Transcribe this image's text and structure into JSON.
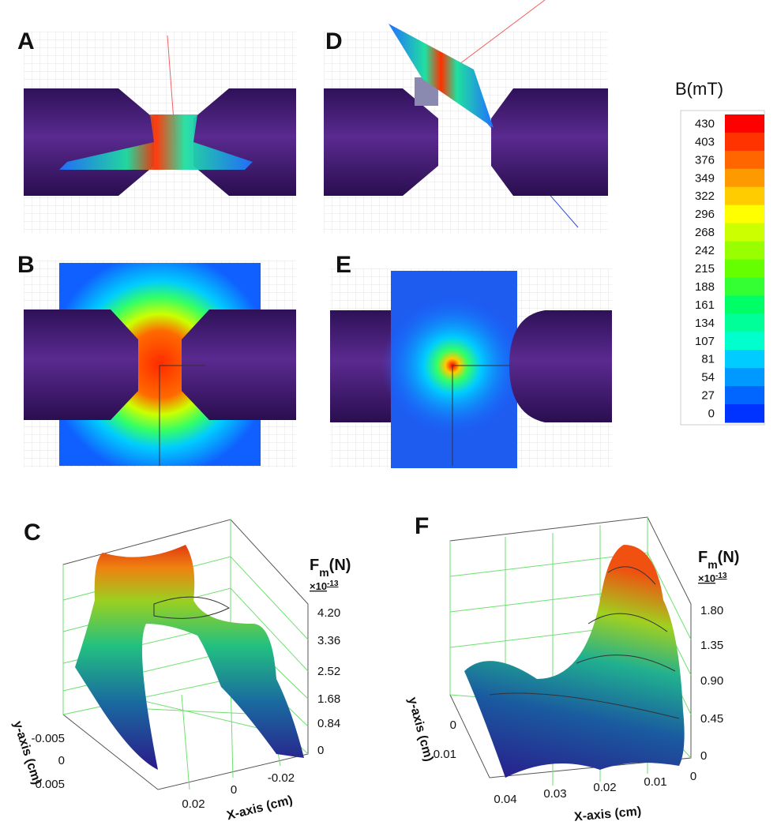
{
  "panels": {
    "A": {
      "label": "A"
    },
    "B": {
      "label": "B"
    },
    "C": {
      "label": "C",
      "force_label": {
        "symbol": "F",
        "subscript": "m",
        "unit": "(N)"
      },
      "multiplier": {
        "base": "×10",
        "exponent": "-13"
      },
      "z_ticks": [
        "4.20",
        "3.36",
        "2.52",
        "1.68",
        "0.84",
        "0"
      ],
      "y_axis_label": "y-axis (cm)",
      "y_ticks": [
        "-0.005",
        "0",
        "0.005"
      ],
      "x_axis_label": "X-axis (cm)",
      "x_ticks": [
        "0.02",
        "0",
        "-0.02"
      ]
    },
    "D": {
      "label": "D"
    },
    "E": {
      "label": "E"
    },
    "F": {
      "label": "F",
      "force_label": {
        "symbol": "F",
        "subscript": "m",
        "unit": "(N)"
      },
      "multiplier": {
        "base": "×10",
        "exponent": "-13"
      },
      "z_ticks": [
        "1.80",
        "1.35",
        "0.90",
        "0.45",
        "0"
      ],
      "y_axis_label": "y-axis (cm)",
      "y_ticks": [
        "0",
        "0.01"
      ],
      "x_axis_label": "X-axis (cm)",
      "x_ticks": [
        "0.04",
        "0.03",
        "0.02",
        "0.01",
        "0"
      ]
    }
  },
  "colorbar": {
    "title": "B(mT)",
    "ticks": [
      "430",
      "403",
      "376",
      "349",
      "322",
      "296",
      "268",
      "242",
      "215",
      "188",
      "161",
      "134",
      "107",
      "81",
      "54",
      "27",
      "0"
    ]
  }
}
